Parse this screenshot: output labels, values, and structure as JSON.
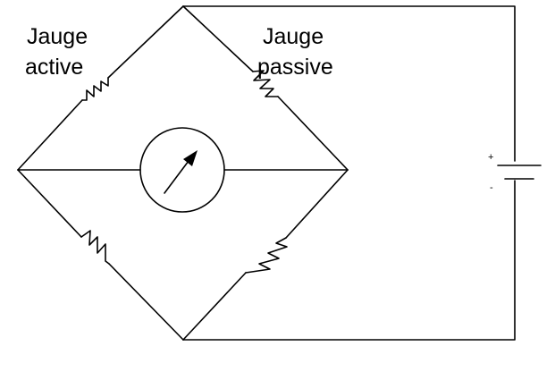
{
  "labels": {
    "active_gauge_line1": "Jauge",
    "active_gauge_line2": "active",
    "passive_gauge_line1": "Jauge",
    "passive_gauge_line2": "passive"
  },
  "battery": {
    "plus_sign": "+",
    "minus_sign": "-"
  },
  "components": {
    "meter_icon": "galvanometer-icon",
    "resistor_icon": "resistor-icon",
    "battery_icon": "battery-icon"
  },
  "colors": {
    "line": "#000000",
    "background": "#ffffff"
  }
}
